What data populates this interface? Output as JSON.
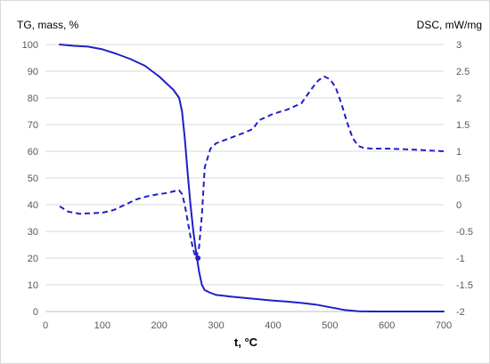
{
  "chart_data": {
    "type": "line",
    "left_axis_title": "TG, mass, %",
    "right_axis_title": "DSC, mW/mg",
    "x_axis_title": "t, °C",
    "x_range": [
      0,
      700
    ],
    "x_ticks": [
      "0",
      "100",
      "200",
      "300",
      "400",
      "500",
      "600",
      "700"
    ],
    "y_left_range": [
      0,
      100
    ],
    "y_left_ticks": [
      "100",
      "90",
      "80",
      "70",
      "60",
      "50",
      "40",
      "30",
      "20",
      "10",
      "0"
    ],
    "y_right_range": [
      -2,
      3
    ],
    "y_right_ticks": [
      "3",
      "2.5",
      "2",
      "1.5",
      "1",
      "0.5",
      "0",
      "-0.5",
      "-1",
      "-1.5",
      "-2"
    ],
    "grid": "horizontal",
    "legend": "none",
    "line_color": "#1f1fc8",
    "series": [
      {
        "axis": "left",
        "style": "solid",
        "x": [
          25,
          50,
          75,
          100,
          125,
          150,
          175,
          200,
          215,
          225,
          235,
          240,
          245,
          250,
          255,
          260,
          265,
          270,
          275,
          280,
          290,
          300,
          325,
          350,
          375,
          400,
          425,
          450,
          475,
          500,
          525,
          550,
          575,
          600,
          650,
          700
        ],
        "y": [
          100,
          99.5,
          99.2,
          98.2,
          96.5,
          94.5,
          92,
          88,
          85,
          83,
          80,
          75,
          65,
          52,
          40,
          30,
          22,
          15,
          10,
          8,
          7,
          6.2,
          5.6,
          5.1,
          4.6,
          4.1,
          3.7,
          3.2,
          2.6,
          1.6,
          0.6,
          0.1,
          0,
          0,
          0,
          0
        ]
      },
      {
        "axis": "right",
        "style": "dashed",
        "x": [
          25,
          40,
          60,
          80,
          100,
          120,
          140,
          160,
          180,
          200,
          215,
          225,
          235,
          240,
          245,
          250,
          255,
          260,
          265,
          270,
          275,
          280,
          290,
          300,
          325,
          350,
          365,
          375,
          390,
          400,
          425,
          450,
          460,
          470,
          480,
          490,
          500,
          510,
          520,
          530,
          540,
          550,
          560,
          575,
          600,
          650,
          700
        ],
        "y": [
          -0.03,
          -0.13,
          -0.17,
          -0.16,
          -0.15,
          -0.1,
          0,
          0.1,
          0.16,
          0.2,
          0.22,
          0.25,
          0.27,
          0.2,
          0,
          -0.3,
          -0.6,
          -0.85,
          -1,
          -0.8,
          -0.2,
          0.7,
          1.05,
          1.15,
          1.25,
          1.35,
          1.42,
          1.58,
          1.65,
          1.7,
          1.78,
          1.9,
          2.05,
          2.2,
          2.33,
          2.4,
          2.35,
          2.2,
          1.9,
          1.55,
          1.25,
          1.1,
          1.06,
          1.05,
          1.05,
          1.03,
          1
        ]
      }
    ],
    "markers": [
      {
        "x": 268,
        "y_left": 20
      }
    ]
  }
}
